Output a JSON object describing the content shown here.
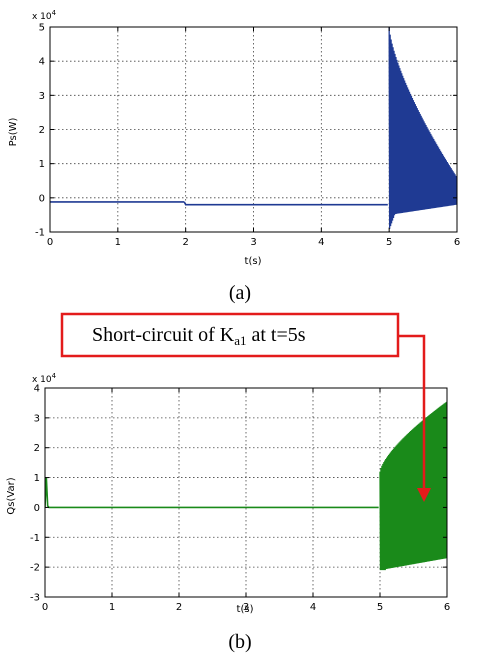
{
  "chart_data": [
    {
      "type": "line",
      "caption": "(a)",
      "ylabel": "Ps(W)",
      "xlabel": "t(s)",
      "y_exponent": "x 10",
      "y_exponent_power": "4",
      "xlim": [
        0,
        6
      ],
      "ylim": [
        -1,
        5
      ],
      "xticks": [
        "0",
        "1",
        "2",
        "3",
        "4",
        "5",
        "6"
      ],
      "yticks": [
        "-1",
        "0",
        "1",
        "2",
        "3",
        "4",
        "5"
      ],
      "grid": true,
      "color": "#1f3a93",
      "series": [
        {
          "segments": [
            {
              "x": [
                0,
                1.98
              ],
              "y": [
                -0.12,
                -0.12
              ]
            },
            {
              "x": [
                1.98,
                2.0,
                4.98
              ],
              "y": [
                -0.12,
                -0.2,
                -0.2
              ]
            }
          ],
          "oscillation": {
            "x_start": 5.0,
            "x_end": 6.0,
            "upper_start": 5.0,
            "upper_end": 0.6,
            "lower_start": -0.5,
            "lower_end": -0.2,
            "lower_min": -0.95
          }
        }
      ]
    },
    {
      "type": "line",
      "caption": "(b)",
      "ylabel": "Qs(Var)",
      "xlabel": "t(s)",
      "y_exponent": "x 10",
      "y_exponent_power": "4",
      "xlim": [
        0,
        6
      ],
      "ylim": [
        -3,
        4
      ],
      "xticks": [
        "0",
        "1",
        "2",
        "3",
        "4",
        "5",
        "6"
      ],
      "yticks": [
        "-3",
        "-2",
        "-1",
        "0",
        "1",
        "2",
        "3",
        "4"
      ],
      "grid": true,
      "color": "#1a8a1a",
      "series": [
        {
          "segments": [
            {
              "x": [
                0,
                0.02,
                0.04,
                0.06,
                4.98
              ],
              "y": [
                0,
                1.0,
                0.05,
                0,
                0
              ]
            }
          ],
          "oscillation": {
            "x_start": 5.0,
            "x_end": 6.0,
            "upper_start": 1.2,
            "upper_end": 3.55,
            "lower_start": -2.1,
            "lower_end": -1.7,
            "lower_min": -2.1
          }
        }
      ]
    }
  ],
  "annotation": {
    "text_main": "Short-circuit of K",
    "text_sub": "a1",
    "text_tail": " at t=5s",
    "border_color": "#e31b1b"
  }
}
